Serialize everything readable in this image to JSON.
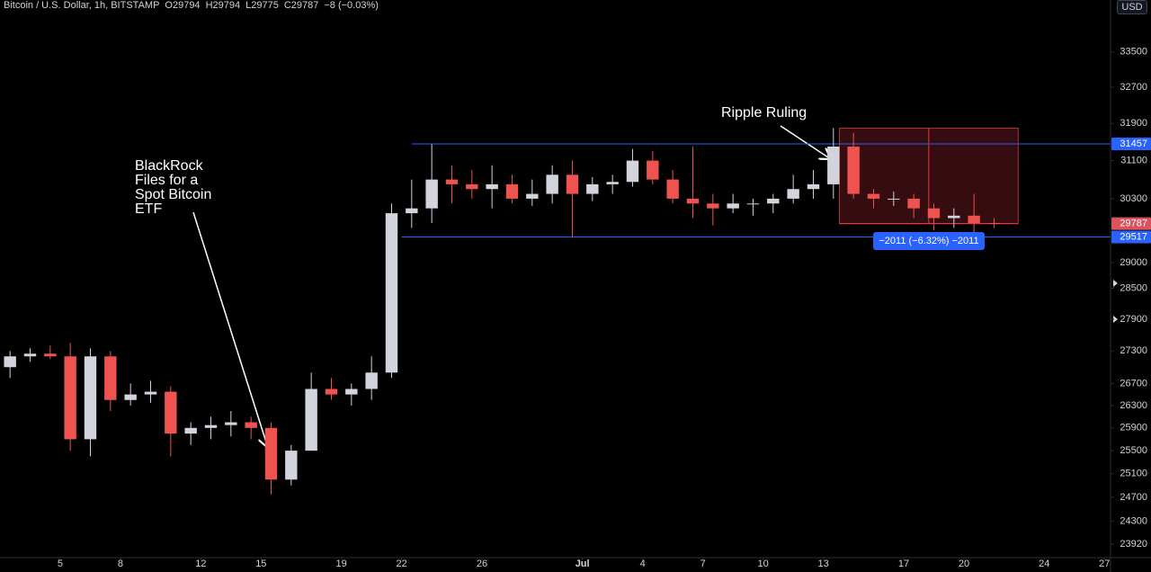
{
  "header": {
    "symbol": "Bitcoin / U.S. Dollar, 1h, BITSTAMP",
    "ohlc": [
      "O29794",
      "H29794",
      "L29775",
      "C29787",
      "−8 (−0.03%)"
    ],
    "currency": "USD"
  },
  "chart_data": {
    "type": "candlestick",
    "log": true,
    "x": [
      1,
      2,
      3,
      4,
      5,
      6,
      7,
      8,
      9,
      10,
      11,
      12,
      13,
      14,
      15,
      16,
      17,
      18,
      19,
      20,
      21,
      22,
      23,
      24,
      25,
      26,
      27,
      28,
      29,
      30,
      31,
      32,
      33,
      34,
      35,
      36,
      37,
      38,
      39,
      40,
      41,
      42,
      43,
      44,
      45,
      46,
      47,
      48,
      49,
      50
    ],
    "open": [
      27000,
      27200,
      27250,
      27200,
      25700,
      27200,
      26400,
      26500,
      26550,
      25800,
      25900,
      25950,
      26000,
      25900,
      25000,
      25500,
      26600,
      26500,
      26600,
      26900,
      30000,
      30100,
      30700,
      30600,
      30500,
      30600,
      30300,
      30400,
      30800,
      30400,
      30600,
      30650,
      31100,
      30700,
      30300,
      30200,
      30100,
      30200,
      30200,
      30300,
      30500,
      30600,
      31400,
      30400,
      30300,
      30300,
      30100,
      29900,
      29950,
      29800
    ],
    "high": [
      27300,
      27350,
      27400,
      27450,
      27350,
      27300,
      26700,
      26750,
      26650,
      26000,
      26100,
      26200,
      26100,
      26000,
      25600,
      26900,
      26800,
      26700,
      27200,
      30200,
      30700,
      31450,
      31000,
      30900,
      31000,
      30800,
      30700,
      31000,
      31100,
      30750,
      30800,
      31350,
      31300,
      30900,
      31400,
      30400,
      30400,
      30300,
      30400,
      30800,
      30900,
      31800,
      31700,
      30500,
      30450,
      30400,
      30200,
      30100,
      30400,
      29900
    ],
    "low": [
      26800,
      27100,
      27150,
      25500,
      25400,
      26200,
      26300,
      26350,
      25400,
      25600,
      25700,
      25750,
      25700,
      24750,
      24900,
      25500,
      26400,
      26300,
      26400,
      26800,
      29700,
      29800,
      30200,
      30300,
      30100,
      30200,
      30150,
      30200,
      29500,
      30250,
      30400,
      30550,
      30600,
      30200,
      29900,
      29750,
      30000,
      29950,
      30000,
      30200,
      30300,
      30300,
      30300,
      30100,
      30150,
      29900,
      29650,
      29700,
      29550,
      29700
    ],
    "close": [
      27200,
      27250,
      27200,
      25700,
      27200,
      26400,
      26500,
      26550,
      25800,
      25900,
      25950,
      26000,
      25900,
      25000,
      25500,
      26600,
      26500,
      26600,
      26900,
      30000,
      30100,
      30700,
      30600,
      30500,
      30600,
      30300,
      30400,
      30800,
      30400,
      30600,
      30650,
      31100,
      30700,
      30300,
      30200,
      30100,
      30200,
      30200,
      30300,
      30500,
      30600,
      31400,
      30400,
      30300,
      30300,
      30100,
      29900,
      29950,
      29800,
      29787
    ],
    "up_color": "#d1d4dc",
    "down_color": "#ef5350",
    "ylim": [
      23700,
      34714
    ],
    "yticks": [
      33500,
      32700,
      31900,
      31100,
      30300,
      29000,
      28500,
      27900,
      27300,
      26700,
      26300,
      25900,
      25500,
      25100,
      24700,
      24300,
      23920
    ],
    "xlim": [
      1,
      56.3
    ],
    "xticks": [
      {
        "value": 4,
        "label": "5"
      },
      {
        "value": 7,
        "label": "8"
      },
      {
        "value": 11,
        "label": "12"
      },
      {
        "value": 14,
        "label": "15"
      },
      {
        "value": 18,
        "label": "19"
      },
      {
        "value": 21,
        "label": "22"
      },
      {
        "value": 25,
        "label": "26"
      },
      {
        "value": 30,
        "label": "Jul"
      },
      {
        "value": 33,
        "label": "4"
      },
      {
        "value": 36,
        "label": "7"
      },
      {
        "value": 39,
        "label": "10"
      },
      {
        "value": 42,
        "label": "13"
      },
      {
        "value": 46,
        "label": "17"
      },
      {
        "value": 49,
        "label": "20"
      },
      {
        "value": 53,
        "label": "24"
      },
      {
        "value": 56,
        "label": "27"
      }
    ],
    "price_lines": [
      {
        "value": 31457,
        "from": 21.5,
        "color": "#2962ff"
      },
      {
        "value": 29517,
        "from": 21,
        "color": "#2962ff"
      }
    ],
    "last_price": {
      "value": 29787,
      "color": "#d9545c"
    },
    "measure": {
      "x": [
        42.8,
        51.7
      ],
      "top": 31798,
      "bottom": 29787,
      "label": "−2011 (−6.32%) −2011"
    },
    "annotations": [
      {
        "text": "BlackRock Files for a Spot Bitcoin ETF"
      },
      {
        "text": "Ripple Ruling"
      }
    ]
  }
}
